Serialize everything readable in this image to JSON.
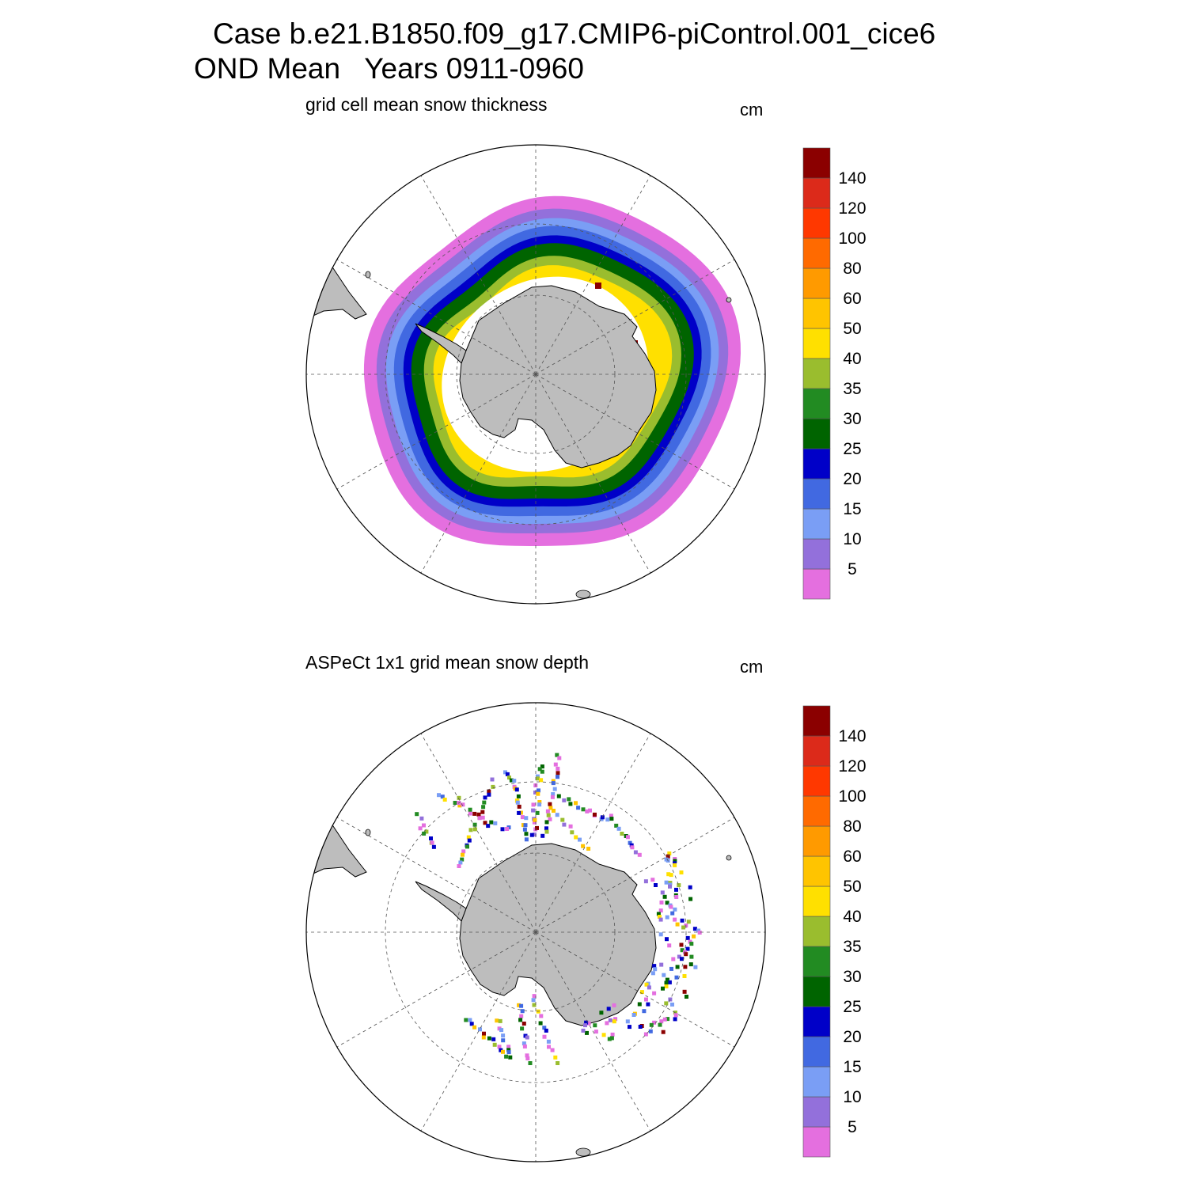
{
  "title": {
    "line1": "Case b.e21.B1850.f09_g17.CMIP6-piControl.001_cice6",
    "line2": "OND Mean   Years 0911-0960"
  },
  "colors": {
    "land": "#bdbdbd",
    "grid": "#555555",
    "outline": "#000000"
  },
  "colorbar": {
    "unit": "cm",
    "labels": [
      "5",
      "10",
      "15",
      "20",
      "25",
      "30",
      "35",
      "40",
      "50",
      "60",
      "80",
      "100",
      "120",
      "140"
    ],
    "colors": [
      "#e46fdf",
      "#9370db",
      "#7a9ef5",
      "#4169e1",
      "#0000c8",
      "#006400",
      "#228b22",
      "#9abd2e",
      "#ffe000",
      "#ffc400",
      "#ff9a00",
      "#ff6a00",
      "#ff3800",
      "#dc2a1a",
      "#8b0000"
    ]
  },
  "panels": [
    {
      "id": "model",
      "subtitle": "grid cell mean snow thickness",
      "unit": "cm",
      "field_type": "continuous",
      "ring_levels_cm": [
        5,
        10,
        15,
        20,
        25,
        30,
        40,
        50
      ]
    },
    {
      "id": "aspect",
      "subtitle": "ASPeCt 1x1 grid mean snow depth",
      "unit": "cm",
      "field_type": "ship-track observations"
    }
  ]
}
